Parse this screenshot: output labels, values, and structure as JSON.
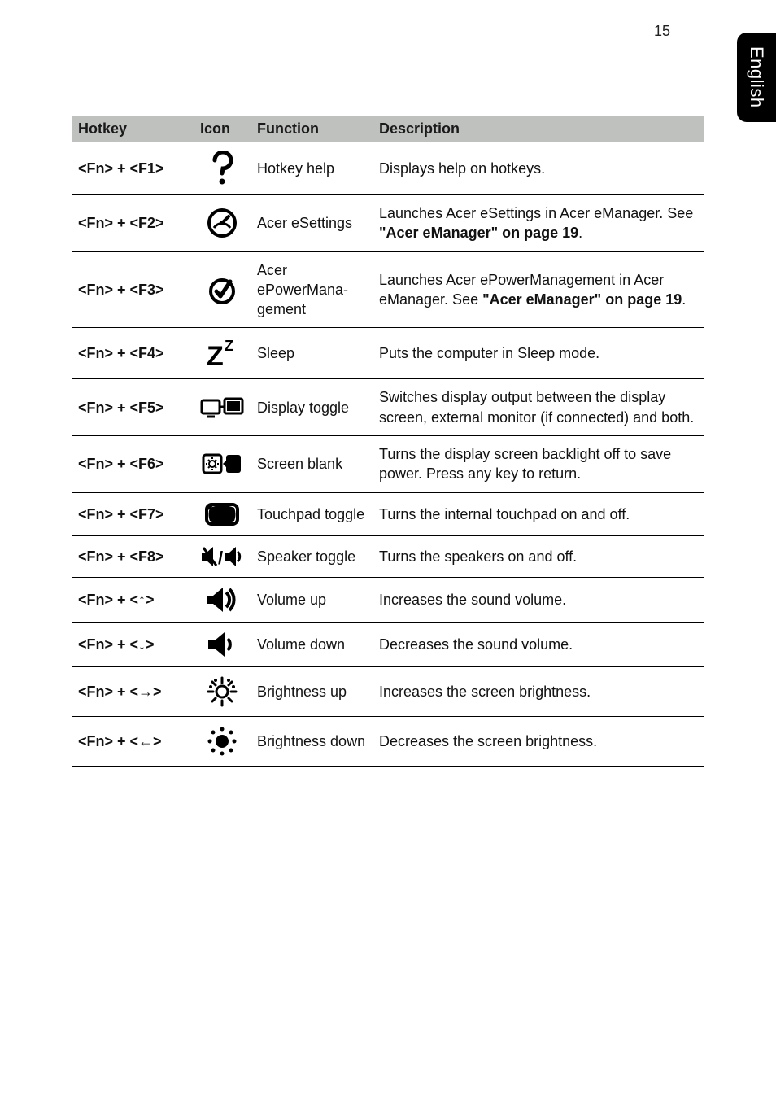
{
  "page_number": "15",
  "side_tab": "English",
  "columns": {
    "hotkey": "Hotkey",
    "icon": "Icon",
    "function": "Function",
    "description": "Description"
  },
  "rows": [
    {
      "hotkey": "<Fn> + <F1>",
      "function": "Hotkey help",
      "desc_plain": "Displays help on hotkeys.",
      "desc_parts": [
        {
          "t": "Displays help on hotkeys."
        }
      ]
    },
    {
      "hotkey": "<Fn> + <F2>",
      "function": "Acer eSettings",
      "desc_parts": [
        {
          "t": "Launches Acer eSettings in Acer eManager. See "
        },
        {
          "t": "\"Acer eManager\" on page 19",
          "b": true
        },
        {
          "t": "."
        }
      ]
    },
    {
      "hotkey": "<Fn> + <F3>",
      "function": "Acer ePowerMana-gement",
      "desc_parts": [
        {
          "t": "Launches Acer ePowerManagement in Acer eManager. See "
        },
        {
          "t": "\"Acer eManager\" on page 19",
          "b": true
        },
        {
          "t": "."
        }
      ]
    },
    {
      "hotkey": "<Fn> + <F4>",
      "function": "Sleep",
      "desc_parts": [
        {
          "t": "Puts the computer in Sleep mode."
        }
      ]
    },
    {
      "hotkey": "<Fn> + <F5>",
      "function": "Display toggle",
      "desc_parts": [
        {
          "t": "Switches display output between the display screen, external monitor (if connected) and both."
        }
      ]
    },
    {
      "hotkey": "<Fn> + <F6>",
      "function": "Screen blank",
      "desc_parts": [
        {
          "t": "Turns the display screen backlight off to save power. Press any key to return."
        }
      ]
    },
    {
      "hotkey": "<Fn> + <F7>",
      "function": "Touchpad toggle",
      "desc_parts": [
        {
          "t": "Turns the internal touchpad on and off."
        }
      ]
    },
    {
      "hotkey": "<Fn> + <F8>",
      "function": "Speaker toggle",
      "desc_parts": [
        {
          "t": "Turns the speakers on and off."
        }
      ]
    },
    {
      "hotkey": "<Fn> + <↑>",
      "function": "Volume up",
      "desc_parts": [
        {
          "t": "Increases the sound volume."
        }
      ]
    },
    {
      "hotkey": "<Fn> + <↓>",
      "function": "Volume down",
      "desc_parts": [
        {
          "t": "Decreases the sound volume."
        }
      ]
    },
    {
      "hotkey": "<Fn> + <→>",
      "function": "Brightness up",
      "desc_parts": [
        {
          "t": "Increases the screen brightness."
        }
      ]
    },
    {
      "hotkey": "<Fn> + <←>",
      "function": "Brightness down",
      "desc_parts": [
        {
          "t": "Decreases the screen brightness."
        }
      ]
    }
  ],
  "icons": {
    "help": "help-icon",
    "esettings": "gauge-icon",
    "epower": "checkmark-icon",
    "sleep": "sleep-zz-icon",
    "display": "display-toggle-icon",
    "blank": "sun-screen-icon",
    "touchpad": "touchpad-icon",
    "speaker": "speaker-toggle-icon",
    "volup": "volume-up-icon",
    "voldown": "volume-down-icon",
    "brightup": "brightness-up-icon",
    "brightdown": "brightness-down-icon"
  },
  "colors": {
    "header_bg": "#bfc1bf",
    "text": "#111111",
    "border": "#000000",
    "side_tab_bg": "#000000",
    "side_tab_fg": "#ffffff"
  },
  "fonts": {
    "body_size_pt": 13,
    "header_weight": 700
  }
}
